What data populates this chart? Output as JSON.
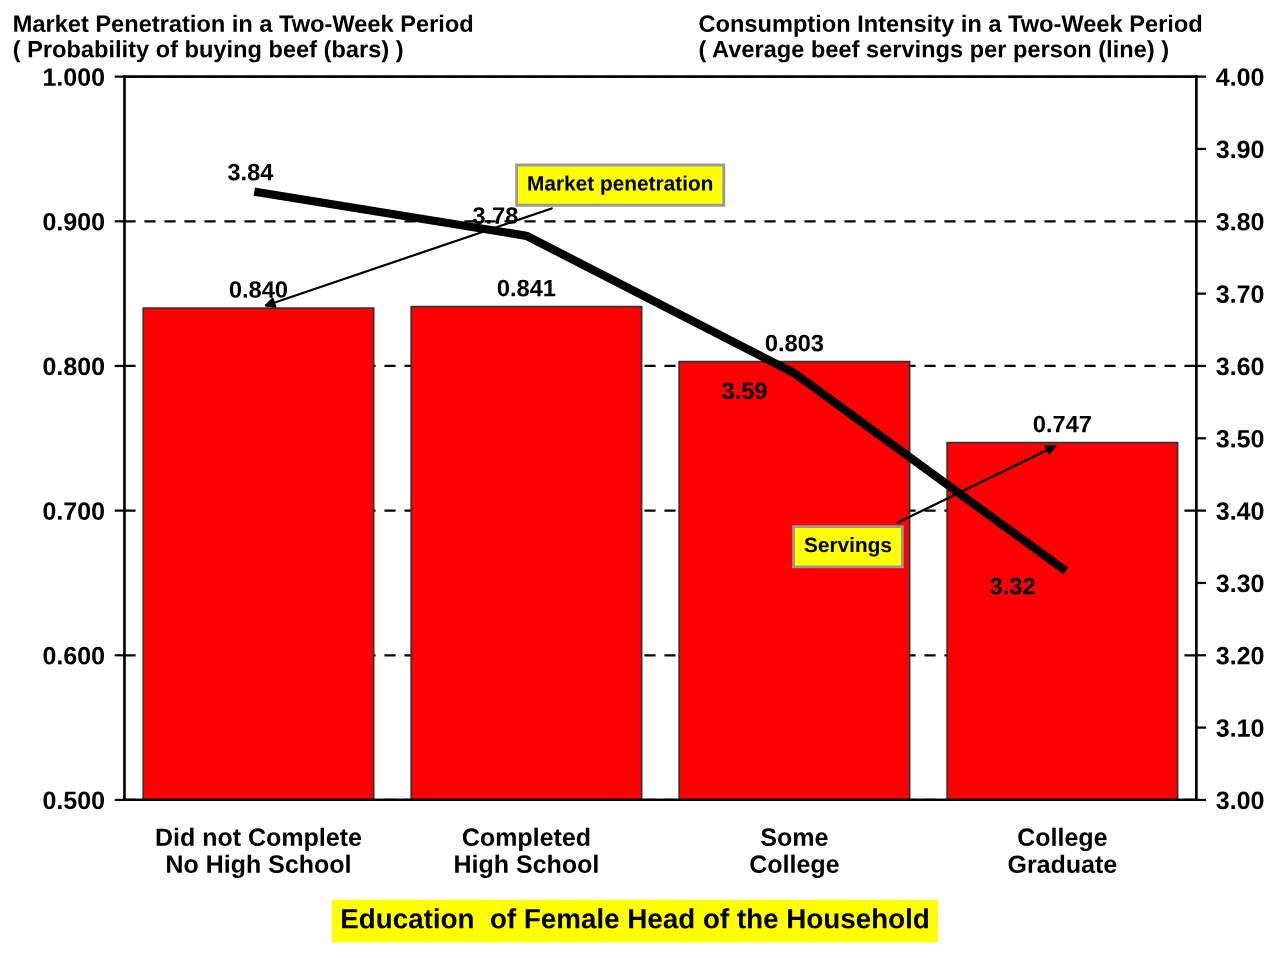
{
  "chart_data": {
    "type": "bar",
    "ylabel": "Market Penetration in a Two-Week Period\n( Probability of buying beef (bars) )",
    "y2label": "Consumption Intensity in a Two-Week Period\n( Average beef servings per person (line) )",
    "xlabel": "Education  of Female Head of the Household",
    "categories": [
      "Did not Complete\nNo High School",
      "Completed\nHigh School",
      "Some\nCollege",
      "College\nGraduate"
    ],
    "series": [
      {
        "color": "#ff0000",
        "values": [
          0.84,
          0.841,
          0.803,
          0.747
        ],
        "value_labels": [
          "0.840",
          "0.841",
          "0.803",
          "0.747"
        ]
      },
      {
        "type": "line",
        "axis": "y2",
        "color": "#000000",
        "values": [
          3.84,
          3.78,
          3.59,
          3.32
        ],
        "value_labels": [
          "3.84",
          "3.78",
          "3.59",
          "3.32"
        ]
      }
    ],
    "ylim": [
      0.5,
      1.0
    ],
    "yticks": [
      {
        "value": 0.5,
        "label": "0.500"
      },
      {
        "value": 0.6,
        "label": "0.600"
      },
      {
        "value": 0.7,
        "label": "0.700"
      },
      {
        "value": 0.8,
        "label": "0.800"
      },
      {
        "value": 0.9,
        "label": "0.900"
      },
      {
        "value": 1.0,
        "label": "1.000"
      }
    ],
    "y2lim": [
      3.0,
      4.0
    ],
    "y2ticks": [
      {
        "value": 3.0,
        "label": "3.00"
      },
      {
        "value": 3.1,
        "label": "3.10"
      },
      {
        "value": 3.2,
        "label": "3.20"
      },
      {
        "value": 3.3,
        "label": "3.30"
      },
      {
        "value": 3.4,
        "label": "3.40"
      },
      {
        "value": 3.5,
        "label": "3.50"
      },
      {
        "value": 3.6,
        "label": "3.60"
      },
      {
        "value": 3.7,
        "label": "3.70"
      },
      {
        "value": 3.8,
        "label": "3.80"
      },
      {
        "value": 3.9,
        "label": "3.90"
      },
      {
        "value": 4.0,
        "label": "4.00"
      }
    ],
    "grid": "y",
    "marker": "none",
    "line_style": "solid",
    "annotations": [
      {
        "text": "Market penetration",
        "x": "Did not Complete\nNo High School",
        "y": 0.84
      },
      {
        "text": "Servings",
        "x": "College\nGraduate",
        "y": 0.747
      }
    ]
  }
}
